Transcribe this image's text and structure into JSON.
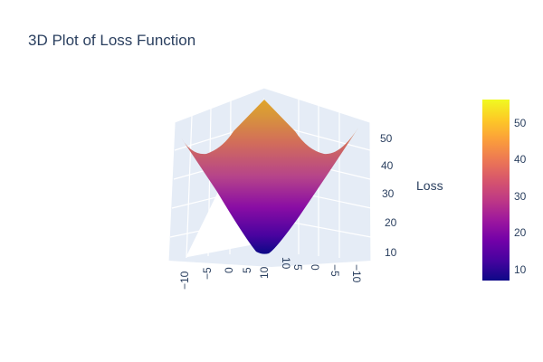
{
  "chart_data": {
    "type": "surface",
    "title": "3D Plot of Loss Function",
    "z_label": "Loss",
    "x_ticks": [
      "−10",
      "−5",
      "0",
      "5",
      "10"
    ],
    "y_ticks": [
      "10",
      "5",
      "0",
      "−5",
      "−10"
    ],
    "z_ticks": [
      "10",
      "20",
      "30",
      "40",
      "50"
    ],
    "x_range": [
      -10,
      10
    ],
    "y_range": [
      -10,
      10
    ],
    "z_range": [
      7,
      56
    ],
    "surface_samples": {
      "x": [
        -10,
        -5,
        0,
        5,
        10
      ],
      "y": [
        -10,
        -5,
        0,
        5,
        10
      ],
      "min_loss": 7,
      "max_loss": 56
    },
    "colorbar": {
      "ticks": [
        "10",
        "20",
        "30",
        "40",
        "50"
      ],
      "min": 7,
      "max": 56,
      "colorscale": "plasma"
    },
    "colors": {
      "scene_bg": "#e5ecf6",
      "grid": "#ffffff",
      "text": "#2a3f5f"
    }
  }
}
